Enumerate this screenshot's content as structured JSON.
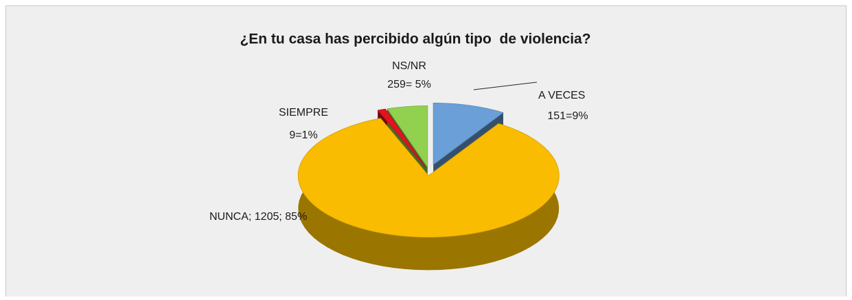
{
  "chart_data": {
    "type": "pie",
    "title": "¿En tu casa has percibido algún tipo  de violencia?",
    "categories": [
      "A VECES",
      "NUNCA",
      "SIEMPRE",
      "NS/NR"
    ],
    "values": [
      9,
      85,
      1,
      5
    ],
    "value_labels": [
      "151=9%",
      "; 1205; 85%",
      "9=1%",
      "259= 5%"
    ],
    "colors": [
      "#6a9fd8",
      "#f9bc00",
      "#e0141e",
      "#92d050"
    ]
  }
}
